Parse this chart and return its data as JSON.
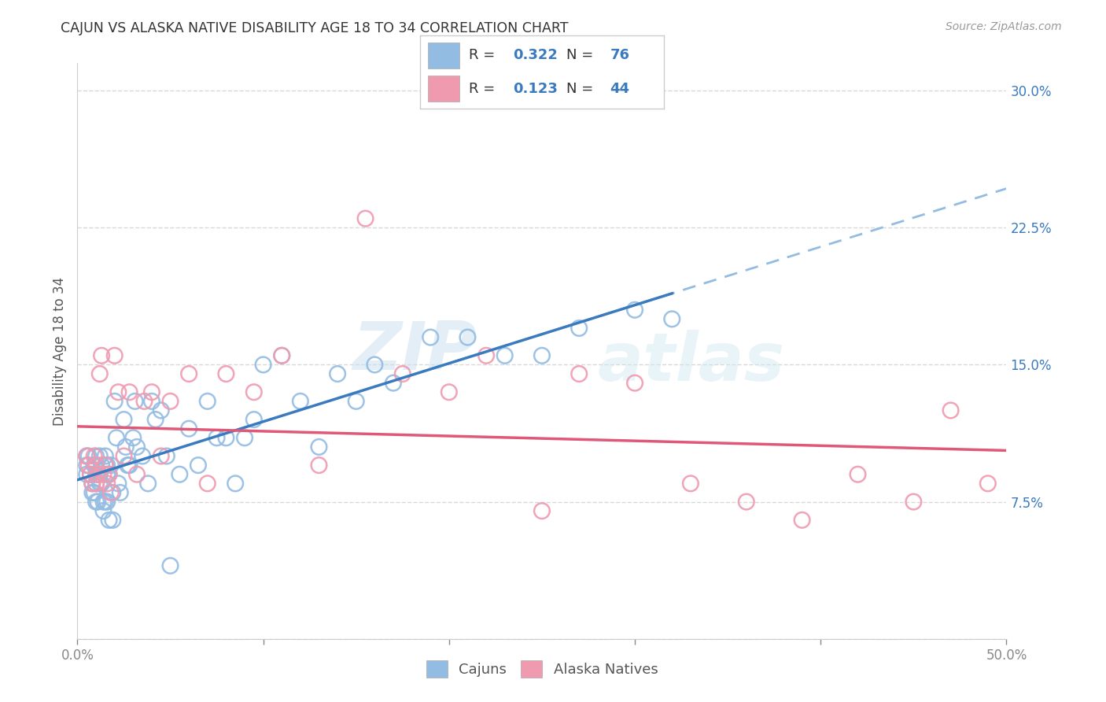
{
  "title": "CAJUN VS ALASKA NATIVE DISABILITY AGE 18 TO 34 CORRELATION CHART",
  "source": "Source: ZipAtlas.com",
  "ylabel": "Disability Age 18 to 34",
  "xlim": [
    0.0,
    0.5
  ],
  "ylim": [
    0.0,
    0.315
  ],
  "xticks": [
    0.0,
    0.1,
    0.2,
    0.3,
    0.4,
    0.5
  ],
  "xticklabels": [
    "0.0%",
    "",
    "",
    "",
    "",
    "50.0%"
  ],
  "yticks": [
    0.0,
    0.075,
    0.15,
    0.225,
    0.3
  ],
  "yticklabels": [
    "",
    "7.5%",
    "15.0%",
    "22.5%",
    "30.0%"
  ],
  "cajun_R": "0.322",
  "cajun_N": "76",
  "alaska_R": "0.123",
  "alaska_N": "44",
  "cajun_color": "#93bce3",
  "alaska_color": "#f09ab0",
  "cajun_line_color": "#3a7abf",
  "alaska_line_color": "#e05878",
  "dash_line_color": "#93bce3",
  "legend_text_color": "#3a7abf",
  "background_color": "#ffffff",
  "grid_color": "#d8d8d8",
  "cajun_points_x": [
    0.005,
    0.005,
    0.005,
    0.006,
    0.007,
    0.008,
    0.008,
    0.009,
    0.009,
    0.01,
    0.01,
    0.01,
    0.01,
    0.01,
    0.011,
    0.011,
    0.012,
    0.012,
    0.012,
    0.013,
    0.013,
    0.014,
    0.014,
    0.015,
    0.015,
    0.015,
    0.016,
    0.016,
    0.016,
    0.017,
    0.017,
    0.018,
    0.019,
    0.019,
    0.02,
    0.021,
    0.022,
    0.023,
    0.025,
    0.026,
    0.027,
    0.028,
    0.03,
    0.031,
    0.032,
    0.035,
    0.038,
    0.04,
    0.042,
    0.045,
    0.048,
    0.05,
    0.055,
    0.06,
    0.065,
    0.07,
    0.075,
    0.08,
    0.085,
    0.09,
    0.095,
    0.1,
    0.11,
    0.12,
    0.13,
    0.14,
    0.15,
    0.16,
    0.17,
    0.19,
    0.21,
    0.23,
    0.25,
    0.27,
    0.3,
    0.32
  ],
  "cajun_points_y": [
    0.1,
    0.095,
    0.09,
    0.1,
    0.09,
    0.085,
    0.08,
    0.095,
    0.08,
    0.1,
    0.095,
    0.09,
    0.085,
    0.075,
    0.09,
    0.075,
    0.1,
    0.09,
    0.085,
    0.095,
    0.085,
    0.075,
    0.07,
    0.1,
    0.095,
    0.075,
    0.095,
    0.09,
    0.075,
    0.09,
    0.065,
    0.095,
    0.08,
    0.065,
    0.13,
    0.11,
    0.085,
    0.08,
    0.12,
    0.105,
    0.095,
    0.095,
    0.11,
    0.13,
    0.105,
    0.1,
    0.085,
    0.13,
    0.12,
    0.125,
    0.1,
    0.04,
    0.09,
    0.115,
    0.095,
    0.13,
    0.11,
    0.11,
    0.085,
    0.11,
    0.12,
    0.15,
    0.155,
    0.13,
    0.105,
    0.145,
    0.13,
    0.15,
    0.14,
    0.165,
    0.165,
    0.155,
    0.155,
    0.17,
    0.18,
    0.175
  ],
  "alaska_points_x": [
    0.005,
    0.006,
    0.007,
    0.008,
    0.009,
    0.01,
    0.01,
    0.011,
    0.012,
    0.013,
    0.014,
    0.015,
    0.016,
    0.017,
    0.018,
    0.02,
    0.022,
    0.025,
    0.028,
    0.032,
    0.036,
    0.04,
    0.045,
    0.05,
    0.06,
    0.07,
    0.08,
    0.095,
    0.11,
    0.13,
    0.155,
    0.175,
    0.2,
    0.22,
    0.25,
    0.27,
    0.3,
    0.33,
    0.36,
    0.39,
    0.42,
    0.45,
    0.47,
    0.49
  ],
  "alaska_points_y": [
    0.1,
    0.095,
    0.09,
    0.085,
    0.1,
    0.095,
    0.085,
    0.09,
    0.145,
    0.155,
    0.09,
    0.095,
    0.085,
    0.09,
    0.08,
    0.155,
    0.135,
    0.1,
    0.135,
    0.09,
    0.13,
    0.135,
    0.1,
    0.13,
    0.145,
    0.085,
    0.145,
    0.135,
    0.155,
    0.095,
    0.23,
    0.145,
    0.135,
    0.155,
    0.07,
    0.145,
    0.14,
    0.085,
    0.075,
    0.065,
    0.09,
    0.075,
    0.125,
    0.085
  ],
  "watermark_zip": "ZIP",
  "watermark_atlas": "atlas"
}
